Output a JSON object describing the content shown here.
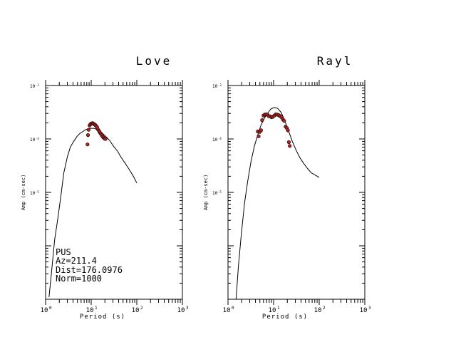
{
  "chart_data": [
    {
      "type": "scatter",
      "title": "Love",
      "xlabel": "Period (s)",
      "ylabel": "Amp (cm-sec)",
      "x_scale": "log",
      "y_scale": "log",
      "xlim": [
        1,
        1000
      ],
      "ylim": [
        1e-07,
        0.001
      ],
      "x_tick_labels": [
        {
          "base": "10",
          "exp": "0",
          "value": 1
        },
        {
          "base": "10",
          "exp": "1",
          "value": 10
        },
        {
          "base": "10",
          "exp": "2",
          "value": 100
        },
        {
          "base": "10",
          "exp": "3",
          "value": 1000
        }
      ],
      "y_tick_labels": [
        {
          "base": "10",
          "exp": "-3",
          "value": 0.001
        },
        {
          "base": "10",
          "exp": "-4",
          "value": 0.0001
        },
        {
          "base": "10",
          "exp": "-5",
          "value": 1e-05
        }
      ],
      "series": [
        {
          "kind": "line",
          "x": [
            1.19,
            1.35,
            1.58,
            1.85,
            2.15,
            2.5,
            3.0,
            3.5,
            4.1,
            4.9,
            5.6,
            6.6,
            7.8,
            9.2,
            11.5,
            13.9,
            16.9,
            20.8,
            25.5,
            30.5,
            37.3,
            45.5,
            55.6,
            67.9,
            81.5,
            100
          ],
          "y": [
            1.1e-07,
            3.2e-07,
            1.3e-06,
            3.2e-06,
            8.3e-06,
            2.3e-05,
            4.6e-05,
            7.1e-05,
            8.9e-05,
            0.000112,
            0.000126,
            0.000138,
            0.000151,
            0.000158,
            0.000158,
            0.000148,
            0.000132,
            0.000112,
            9.3e-05,
            7.4e-05,
            6e-05,
            4.5e-05,
            3.5e-05,
            2.7e-05,
            2.1e-05,
            1.5e-05
          ]
        },
        {
          "kind": "points",
          "color": "#b22020",
          "x": [
            8.3,
            8.5,
            8.8,
            9.2,
            9.6,
            10.1,
            10.7,
            11.2,
            11.7,
            12.3,
            12.9,
            13.5,
            14.1,
            14.8,
            15.5,
            16.2,
            17.0,
            17.8,
            18.7,
            19.5,
            20.5
          ],
          "y": [
            7.9e-05,
            0.000118,
            0.000148,
            0.000178,
            0.000188,
            0.000195,
            0.000198,
            0.000193,
            0.000188,
            0.000182,
            0.000175,
            0.000165,
            0.00015,
            0.000142,
            0.000132,
            0.000125,
            0.000118,
            0.00011,
            0.000106,
            0.000102,
            0.0001
          ]
        }
      ],
      "annotations": [
        "PUS",
        "Az=211.4",
        "Dist=176.0976",
        "Norm=1000"
      ]
    },
    {
      "type": "scatter",
      "title": "Rayl",
      "xlabel": "Period (s)",
      "ylabel": "Amp (cm-sec)",
      "x_scale": "log",
      "y_scale": "log",
      "xlim": [
        1,
        1000
      ],
      "ylim": [
        1e-07,
        0.001
      ],
      "x_tick_labels": [
        {
          "base": "10",
          "exp": "0",
          "value": 1
        },
        {
          "base": "10",
          "exp": "1",
          "value": 10
        },
        {
          "base": "10",
          "exp": "2",
          "value": 100
        },
        {
          "base": "10",
          "exp": "3",
          "value": 1000
        }
      ],
      "y_tick_labels": [
        {
          "base": "10",
          "exp": "-3",
          "value": 0.001
        },
        {
          "base": "10",
          "exp": "-4",
          "value": 0.0001
        },
        {
          "base": "10",
          "exp": "-5",
          "value": 1e-05
        }
      ],
      "series": [
        {
          "kind": "line",
          "x": [
            1.5,
            1.7,
            1.95,
            2.3,
            2.7,
            3.2,
            3.8,
            4.5,
            5.3,
            6.3,
            7.4,
            8.7,
            10.3,
            12.3,
            14.8,
            17.6,
            21.3,
            25.6,
            31.1,
            37.5,
            45.4,
            55.4,
            67.8,
            82.6,
            100
          ],
          "y": [
            1e-07,
            4.3e-07,
            1.6e-06,
            6.3e-06,
            1.6e-05,
            3.8e-05,
            7.4e-05,
            0.00012,
            0.000182,
            0.000245,
            0.000302,
            0.000363,
            0.000389,
            0.000372,
            0.000309,
            0.000219,
            0.000141,
            9.1e-05,
            6.2e-05,
            4.5e-05,
            3.5e-05,
            2.8e-05,
            2.3e-05,
            2.1e-05,
            1.9e-05
          ]
        },
        {
          "kind": "points",
          "color": "#b22020",
          "x": [
            4.5,
            4.7,
            5.0,
            5.3,
            5.6,
            6.0,
            6.4,
            6.8,
            7.3,
            7.8,
            8.4,
            9.0,
            9.6,
            10.4,
            11.2,
            12.0,
            12.9,
            13.9,
            14.9,
            15.9,
            17.0,
            18.3,
            19.5,
            20.5,
            21.6,
            22.6
          ],
          "y": [
            0.000138,
            0.000112,
            0.000135,
            0.000145,
            0.000225,
            0.000275,
            0.000285,
            0.000288,
            0.000285,
            0.000268,
            0.000265,
            0.000255,
            0.00026,
            0.000275,
            0.000288,
            0.000285,
            0.000279,
            0.000268,
            0.000255,
            0.000233,
            0.000219,
            0.00017,
            0.00016,
            0.000145,
            8.7e-05,
            7.4e-05
          ]
        }
      ],
      "annotations": []
    }
  ]
}
